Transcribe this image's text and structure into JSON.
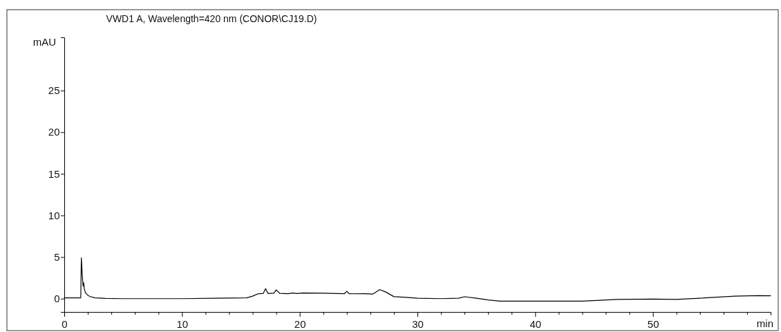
{
  "chart_data": {
    "type": "line",
    "title": "VWD1 A, Wavelength=420 nm (CONOR\\CJ19.D)",
    "xlabel": "min",
    "ylabel": "mAU",
    "series": [
      {
        "color": "#000000",
        "x": [
          0,
          0.7,
          1.4,
          1.45,
          1.52,
          1.6,
          1.65,
          1.7,
          1.8,
          2.0,
          2.2,
          2.6,
          3.5,
          5,
          8,
          10,
          13,
          15.5,
          16,
          16.5,
          16.9,
          17.1,
          17.3,
          17.8,
          18.0,
          18.3,
          19,
          19.4,
          19.8,
          20.2,
          22,
          23.8,
          24,
          24.2,
          25.5,
          26.2,
          26.8,
          27.3,
          28,
          29,
          30,
          32,
          33.5,
          34,
          35,
          36,
          37,
          40,
          44,
          47,
          50,
          52,
          54,
          57,
          59,
          60
        ],
        "values": [
          0.1,
          0.1,
          0.1,
          4.9,
          3.0,
          1.5,
          1.9,
          1.2,
          0.7,
          0.4,
          0.25,
          0.1,
          0.03,
          0.0,
          0.0,
          0.0,
          0.05,
          0.1,
          0.3,
          0.6,
          0.62,
          1.2,
          0.62,
          0.65,
          1.05,
          0.64,
          0.6,
          0.68,
          0.62,
          0.68,
          0.65,
          0.6,
          0.88,
          0.58,
          0.6,
          0.55,
          1.08,
          0.8,
          0.24,
          0.15,
          0.05,
          0.0,
          0.05,
          0.23,
          0.05,
          -0.15,
          -0.3,
          -0.3,
          -0.3,
          -0.1,
          -0.06,
          -0.1,
          0.05,
          0.3,
          0.37,
          0.35
        ]
      }
    ],
    "xlim": [
      0,
      60
    ],
    "ylim": [
      -1.6,
      31.4
    ],
    "xticks": [
      0,
      {
        "value": 2,
        "label": null
      },
      {
        "value": 4,
        "label": null
      },
      {
        "value": 6,
        "label": null
      },
      {
        "value": 8,
        "label": null
      },
      10,
      {
        "value": 12,
        "label": null
      },
      {
        "value": 14,
        "label": null
      },
      {
        "value": 16,
        "label": null
      },
      {
        "value": 18,
        "label": null
      },
      20,
      {
        "value": 22,
        "label": null
      },
      {
        "value": 24,
        "label": null
      },
      {
        "value": 26,
        "label": null
      },
      {
        "value": 28,
        "label": null
      },
      30,
      {
        "value": 32,
        "label": null
      },
      {
        "value": 34,
        "label": null
      },
      {
        "value": 36,
        "label": null
      },
      {
        "value": 38,
        "label": null
      },
      40,
      {
        "value": 42,
        "label": null
      },
      {
        "value": 44,
        "label": null
      },
      {
        "value": 46,
        "label": null
      },
      {
        "value": 48,
        "label": null
      },
      50,
      {
        "value": 52,
        "label": null
      },
      {
        "value": 54,
        "label": null
      },
      {
        "value": 56,
        "label": null
      },
      {
        "value": 58,
        "label": null
      }
    ],
    "yticks": [
      0,
      5,
      10,
      15,
      20,
      25
    ],
    "marker": "none",
    "line_style": "solid"
  }
}
